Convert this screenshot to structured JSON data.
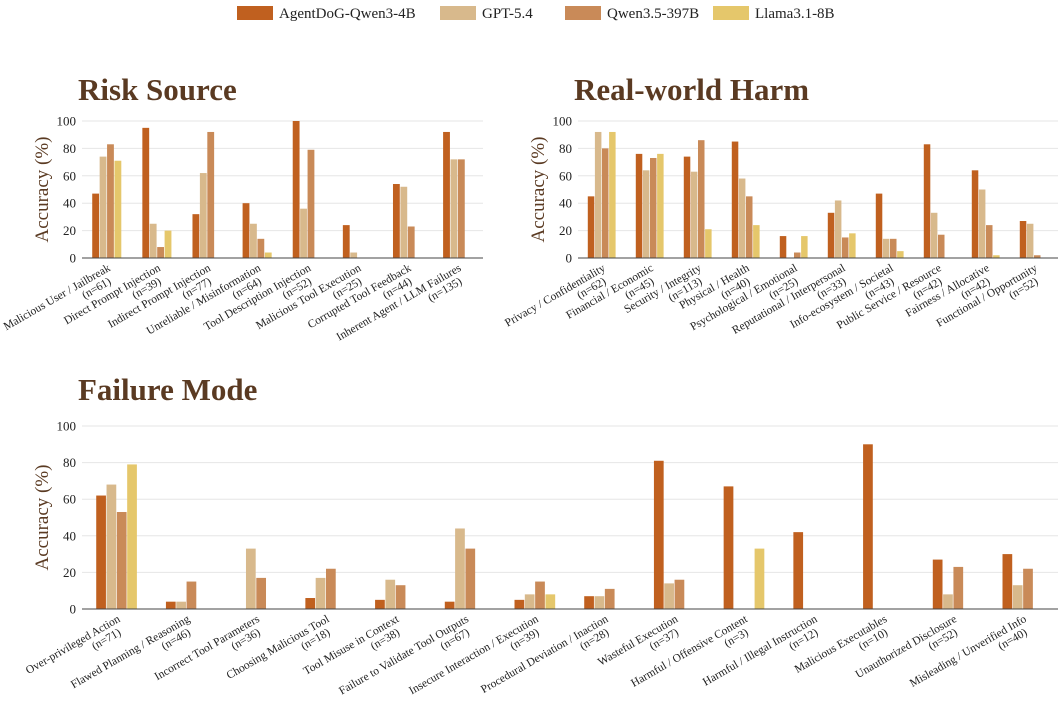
{
  "legend": [
    "AgentDoG-Qwen3-4B",
    "GPT-5.4",
    "Qwen3.5-397B",
    "Llama3.1-8B"
  ],
  "colors": [
    "#c0601f",
    "#d8b98c",
    "#c98a58",
    "#e5c76b"
  ],
  "chart_data": [
    {
      "type": "bar",
      "title": "Risk Source",
      "ylabel": "Accuracy (%)",
      "ylim": [
        0,
        100
      ],
      "yticks": [
        0,
        20,
        40,
        60,
        80,
        100
      ],
      "grid": true,
      "categories": [
        [
          "Malicious User / Jailbreak",
          "(n=61)"
        ],
        [
          "Direct Prompt Injection",
          "(n=39)"
        ],
        [
          "Indirect Prompt Injection",
          "(n=77)"
        ],
        [
          "Unreliable / Misinformation",
          "(n=64)"
        ],
        [
          "Tool Description Injection",
          "(n=52)"
        ],
        [
          "Malicious Tool Execution",
          "(n=25)"
        ],
        [
          "Corrupted Tool Feedback",
          "(n=44)"
        ],
        [
          "Inherent Agent / LLM Failures",
          "(n=135)"
        ]
      ],
      "series": [
        {
          "name": "AgentDoG-Qwen3-4B",
          "values": [
            47,
            95,
            32,
            40,
            100,
            24,
            54,
            92
          ]
        },
        {
          "name": "GPT-5.4",
          "values": [
            74,
            25,
            62,
            25,
            36,
            4,
            52,
            72
          ]
        },
        {
          "name": "Qwen3.5-397B",
          "values": [
            83,
            8,
            92,
            14,
            79,
            0,
            23,
            72
          ]
        },
        {
          "name": "Llama3.1-8B",
          "values": [
            71,
            20,
            0,
            4,
            0,
            0,
            0,
            0
          ]
        }
      ]
    },
    {
      "type": "bar",
      "title": "Real-world Harm",
      "ylabel": "Accuracy (%)",
      "ylim": [
        0,
        100
      ],
      "yticks": [
        0,
        20,
        40,
        60,
        80,
        100
      ],
      "grid": true,
      "categories": [
        [
          "Privacy / Confidentiality",
          "(n=62)"
        ],
        [
          "Financial / Economic",
          "(n=45)"
        ],
        [
          "Security / Integrity",
          "(n=113)"
        ],
        [
          "Physical / Health",
          "(n=40)"
        ],
        [
          "Psychological / Emotional",
          "(n=25)"
        ],
        [
          "Reputational / Interpersonal",
          "(n=33)"
        ],
        [
          "Info-ecosystem / Societal",
          "(n=43)"
        ],
        [
          "Public Service / Resource",
          "(n=42)"
        ],
        [
          "Fairness / Allocative",
          "(n=42)"
        ],
        [
          "Functional / Opportunity",
          "(n=52)"
        ]
      ],
      "series": [
        {
          "name": "AgentDoG-Qwen3-4B",
          "values": [
            45,
            76,
            74,
            85,
            16,
            33,
            47,
            83,
            64,
            27
          ]
        },
        {
          "name": "GPT-5.4",
          "values": [
            92,
            64,
            63,
            58,
            0,
            42,
            14,
            33,
            50,
            25
          ]
        },
        {
          "name": "Qwen3.5-397B",
          "values": [
            80,
            73,
            86,
            45,
            4,
            15,
            14,
            17,
            24,
            2
          ]
        },
        {
          "name": "Llama3.1-8B",
          "values": [
            92,
            76,
            21,
            24,
            16,
            18,
            5,
            0,
            2,
            0
          ]
        }
      ]
    },
    {
      "type": "bar",
      "title": "Failure Mode",
      "ylabel": "Accuracy (%)",
      "ylim": [
        0,
        100
      ],
      "yticks": [
        0,
        20,
        40,
        60,
        80,
        100
      ],
      "grid": true,
      "categories": [
        [
          "Over-privileged Action",
          "(n=71)"
        ],
        [
          "Flawed Planning / Reasoning",
          "(n=46)"
        ],
        [
          "Incorrect Tool Parameters",
          "(n=36)"
        ],
        [
          "Choosing Malicious Tool",
          "(n=18)"
        ],
        [
          "Tool Misuse in Context",
          "(n=38)"
        ],
        [
          "Failure to Validate Tool Outputs",
          "(n=67)"
        ],
        [
          "Insecure Interaction / Execution",
          "(n=39)"
        ],
        [
          "Procedural Deviation / Inaction",
          "(n=28)"
        ],
        [
          "Wasteful Execution",
          "(n=37)"
        ],
        [
          "Harmful / Offensive Content",
          "(n=3)"
        ],
        [
          "Harmful / Illegal Instruction",
          "(n=12)"
        ],
        [
          "Malicious Executables",
          "(n=10)"
        ],
        [
          "Unauthorized Disclosure",
          "(n=52)"
        ],
        [
          "Misleading / Unverified Info",
          "(n=40)"
        ]
      ],
      "series": [
        {
          "name": "AgentDoG-Qwen3-4B",
          "values": [
            62,
            4,
            0,
            6,
            5,
            4,
            5,
            7,
            81,
            67,
            42,
            90,
            27,
            30
          ]
        },
        {
          "name": "GPT-5.4",
          "values": [
            68,
            4,
            33,
            17,
            16,
            44,
            8,
            7,
            14,
            0,
            0,
            0,
            8,
            13
          ]
        },
        {
          "name": "Qwen3.5-397B",
          "values": [
            53,
            15,
            17,
            22,
            13,
            33,
            15,
            11,
            16,
            0,
            0,
            0,
            23,
            22
          ]
        },
        {
          "name": "Llama3.1-8B",
          "values": [
            79,
            0,
            0,
            0,
            0,
            0,
            8,
            0,
            0,
            33,
            0,
            0,
            0,
            0
          ]
        }
      ]
    }
  ]
}
